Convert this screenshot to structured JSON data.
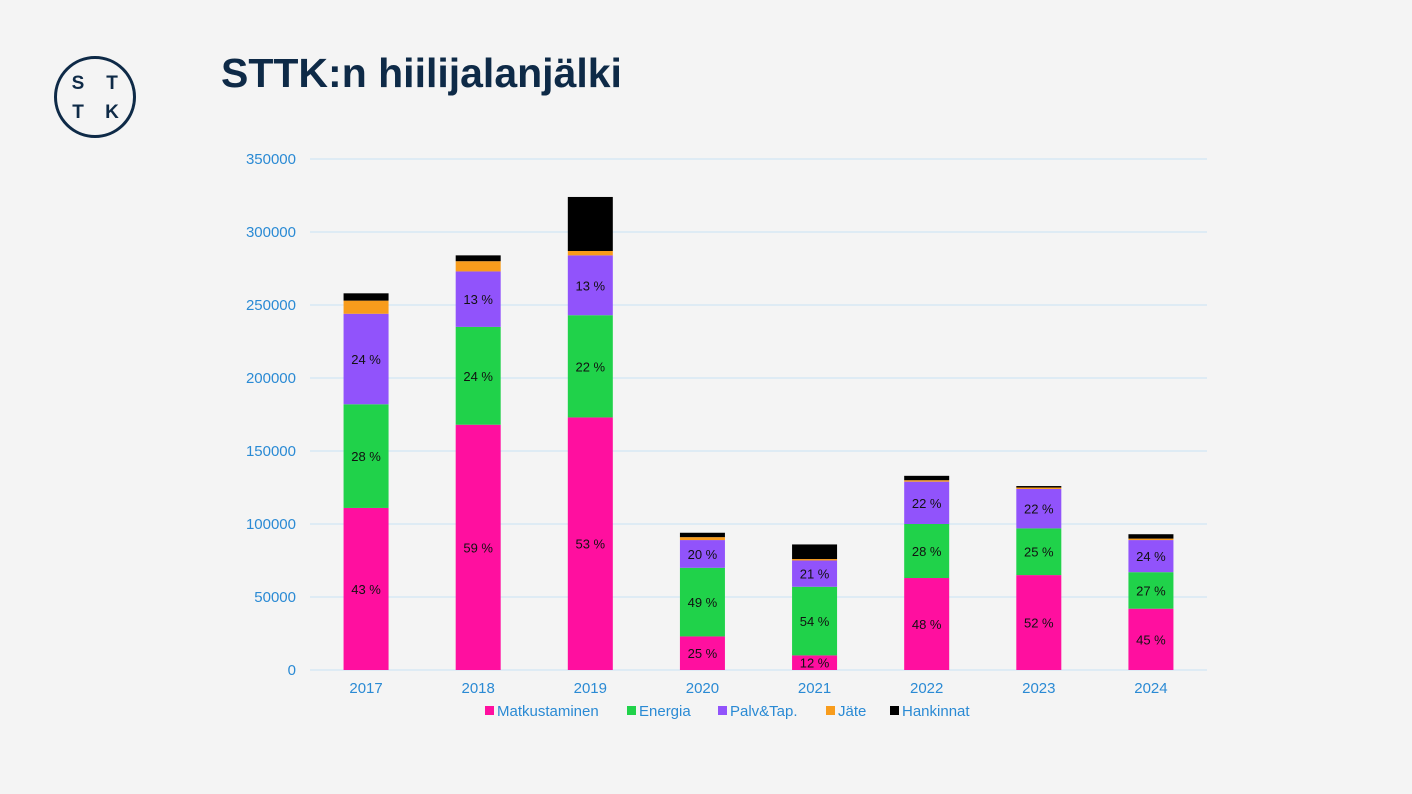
{
  "slide": {
    "title": "STTK:n hiilijalanjälki",
    "logo": {
      "letters": [
        "S",
        "T",
        "T",
        "K"
      ],
      "color": "#0e2a47"
    }
  },
  "chart_data": {
    "type": "bar",
    "stacked": true,
    "categories": [
      "2017",
      "2018",
      "2019",
      "2020",
      "2021",
      "2022",
      "2023",
      "2024"
    ],
    "ylim": [
      0,
      350000
    ],
    "yticks": [
      "0",
      "50000",
      "100000",
      "150000",
      "200000",
      "250000",
      "300000",
      "350000"
    ],
    "grid": true,
    "legend_position": "bottom",
    "series": [
      {
        "name": "Matkustaminen",
        "color": "#ff0f9f",
        "values": [
          111000,
          168000,
          173000,
          23000,
          10000,
          63000,
          65000,
          42000
        ],
        "labels": [
          "43 %",
          "59 %",
          "53 %",
          "25 %",
          "12 %",
          "48 %",
          "52 %",
          "45 %"
        ]
      },
      {
        "name": "Energia",
        "color": "#20d24a",
        "values": [
          71000,
          67000,
          70000,
          47000,
          47000,
          37000,
          32000,
          25000
        ],
        "labels": [
          "28 %",
          "24 %",
          "22 %",
          "49 %",
          "54 %",
          "28 %",
          "25 %",
          "27 %"
        ]
      },
      {
        "name": "Palv&Tap.",
        "color": "#9153fb",
        "values": [
          62000,
          38000,
          41000,
          19000,
          18000,
          29000,
          27000,
          22000
        ],
        "labels": [
          "24 %",
          "13 %",
          "13 %",
          "20 %",
          "21 %",
          "22 %",
          "22 %",
          "24 %"
        ]
      },
      {
        "name": "Jäte",
        "color": "#f89c1c",
        "values": [
          9000,
          7000,
          3000,
          2000,
          1000,
          1000,
          1000,
          1000
        ],
        "labels": [
          "",
          "",
          "",
          "",
          "",
          "",
          "",
          ""
        ]
      },
      {
        "name": "Hankinnat",
        "color": "#000000",
        "values": [
          5000,
          4000,
          37000,
          3000,
          10000,
          3000,
          1000,
          3000
        ],
        "labels": [
          "",
          "",
          "",
          "",
          "",
          "",
          "",
          ""
        ]
      }
    ]
  }
}
